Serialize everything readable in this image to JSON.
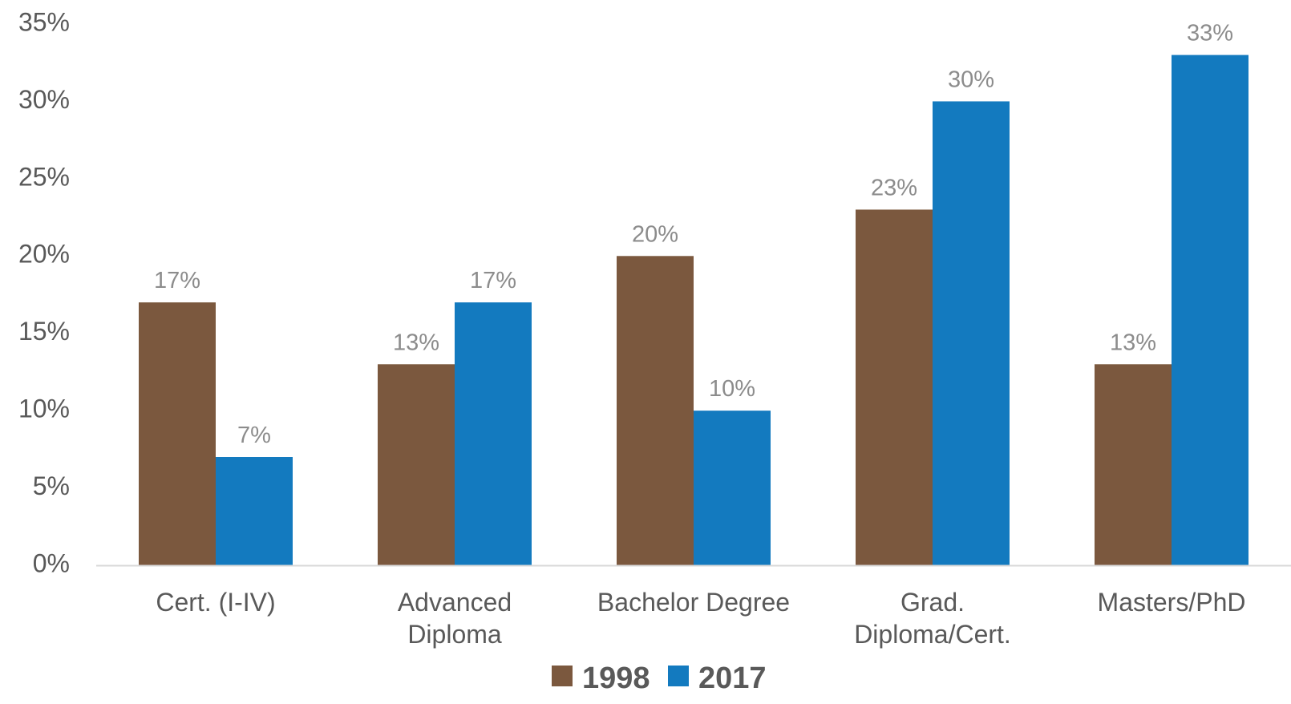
{
  "chart_data": {
    "type": "bar",
    "categories": [
      [
        "Cert. (I-IV)"
      ],
      [
        "Advanced",
        "Diploma"
      ],
      [
        "Bachelor Degree"
      ],
      [
        "Grad.",
        "Diploma/Cert."
      ],
      [
        "Masters/PhD"
      ]
    ],
    "series": [
      {
        "name": "1998",
        "values": [
          17,
          13,
          20,
          23,
          13
        ],
        "labels": [
          "17%",
          "13%",
          "20%",
          "23%",
          "13%"
        ],
        "color": "#7b583e"
      },
      {
        "name": "2017",
        "values": [
          7,
          17,
          10,
          30,
          33
        ],
        "labels": [
          "7%",
          "17%",
          "10%",
          "30%",
          "33%"
        ],
        "color": "#137abf"
      }
    ],
    "ylim": [
      0,
      35
    ],
    "yticks": [
      0,
      5,
      10,
      15,
      20,
      25,
      30,
      35
    ],
    "ytick_labels": [
      "0%",
      "5%",
      "10%",
      "15%",
      "20%",
      "25%",
      "30%",
      "35%"
    ],
    "grid": false,
    "legend_position": "bottom",
    "colors": {
      "axis": "#d9d9d9",
      "tick_text": "#595959",
      "data_label": "#8c8c8c"
    }
  }
}
